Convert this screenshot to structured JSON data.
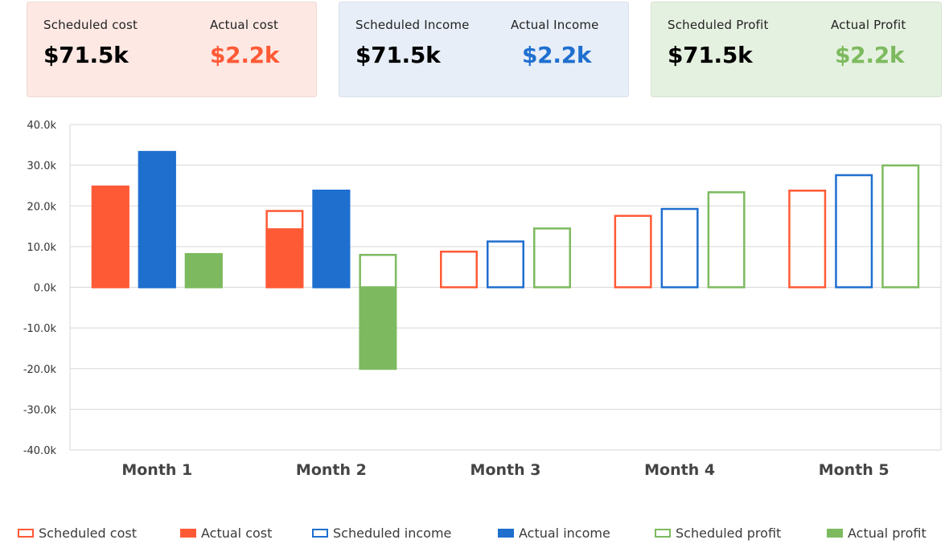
{
  "colors": {
    "cost": "#ff5a36",
    "income": "#1f6fcf",
    "profit": "#7dba5f",
    "cost_card_bg": "#fde8e3",
    "income_card_bg": "#e7eef8",
    "profit_card_bg": "#e5f1e0",
    "grid": "#d7d7d7",
    "axis_text": "#333333",
    "category_text": "#444444"
  },
  "summary": {
    "cost": {
      "scheduled_label": "Scheduled cost",
      "scheduled_value": "$71.5k",
      "actual_label": "Actual cost",
      "actual_value": "$2.2k"
    },
    "income": {
      "scheduled_label": "Scheduled Income",
      "scheduled_value": "$71.5k",
      "actual_label": "Actual Income",
      "actual_value": "$2.2k"
    },
    "profit": {
      "scheduled_label": "Scheduled Profit",
      "scheduled_value": "$71.5k",
      "actual_label": "Actual Profit",
      "actual_value": "$2.2k"
    }
  },
  "chart_data": {
    "type": "bar",
    "title": "",
    "xlabel": "",
    "ylabel": "",
    "ylim": [
      -40000,
      40000
    ],
    "y_ticks": [
      40000,
      30000,
      20000,
      10000,
      0,
      -10000,
      -20000,
      -30000,
      -40000
    ],
    "y_tick_labels": [
      "40.0k",
      "30.0k",
      "20.0k",
      "10.0k",
      "0.0k",
      "-10.0k",
      "-20.0k",
      "-30.0k",
      "-40.0k"
    ],
    "grid": true,
    "legend_position": "bottom",
    "categories": [
      "Month 1",
      "Month 2",
      "Month 3",
      "Month 4",
      "Month 5"
    ],
    "series": [
      {
        "name": "Scheduled cost",
        "group": "cost",
        "style": "outline",
        "values": [
          25000,
          19000,
          9000,
          17800,
          24000
        ]
      },
      {
        "name": "Actual cost",
        "group": "cost",
        "style": "filled",
        "values": [
          25000,
          14500,
          null,
          null,
          null
        ]
      },
      {
        "name": "Scheduled income",
        "group": "income",
        "style": "outline",
        "values": [
          33500,
          24000,
          11500,
          19500,
          27800
        ]
      },
      {
        "name": "Actual income",
        "group": "income",
        "style": "filled",
        "values": [
          33500,
          24000,
          null,
          null,
          null
        ]
      },
      {
        "name": "Scheduled profit",
        "group": "profit",
        "style": "outline",
        "values": [
          8400,
          8200,
          14700,
          23600,
          30200
        ]
      },
      {
        "name": "Actual profit",
        "group": "profit",
        "style": "filled",
        "values": [
          8400,
          -20300,
          null,
          null,
          null
        ]
      }
    ]
  }
}
